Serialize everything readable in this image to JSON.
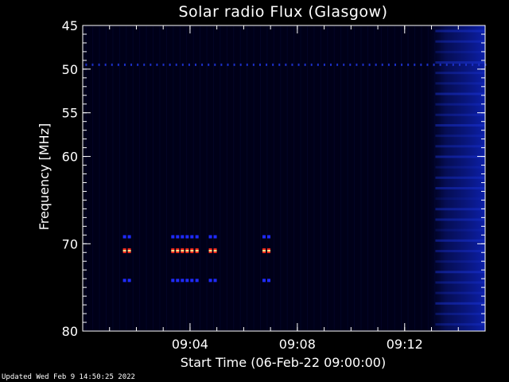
{
  "chart_data": {
    "type": "heatmap",
    "title": "Solar radio Flux (Glasgow)",
    "xlabel": "Start Time (06-Feb-22 09:00:00)",
    "ylabel": "Frequency [MHz]",
    "x_unit": "minutes after 09:00:00",
    "xlim": [
      0,
      15
    ],
    "ylim": [
      45,
      80
    ],
    "y_inverted": true,
    "x_ticks": [
      {
        "value": 4,
        "label": "09:04"
      },
      {
        "value": 8,
        "label": "09:08"
      },
      {
        "value": 12,
        "label": "09:12"
      }
    ],
    "y_ticks": [
      {
        "value": 45,
        "label": "45"
      },
      {
        "value": 50,
        "label": "50"
      },
      {
        "value": 55,
        "label": "55"
      },
      {
        "value": 60,
        "label": "60"
      },
      {
        "value": 70,
        "label": "70"
      },
      {
        "value": 80,
        "label": "80"
      }
    ],
    "colors": {
      "background": "#000000",
      "low": "#000018",
      "mid": "#0a1a9a",
      "high": "#ff2a1a",
      "peak": "#ffe08a"
    },
    "features": {
      "interference_line_mhz": 49.5,
      "bursts": [
        {
          "t_start": 1.5,
          "t_end": 1.8,
          "freqs_mhz": [
            69.2,
            70.8,
            74.2
          ],
          "center_mhz": 70.8
        },
        {
          "t_start": 3.3,
          "t_end": 4.0,
          "freqs_mhz": [
            69.2,
            70.8,
            74.2
          ],
          "center_mhz": 70.8
        },
        {
          "t_start": 4.2,
          "t_end": 4.3,
          "freqs_mhz": [
            69.2,
            70.8,
            74.2
          ],
          "center_mhz": 70.8
        },
        {
          "t_start": 4.7,
          "t_end": 5.0,
          "freqs_mhz": [
            69.2,
            70.8,
            74.2
          ],
          "center_mhz": 70.8
        },
        {
          "t_start": 6.7,
          "t_end": 7.0,
          "freqs_mhz": [
            69.2,
            70.8,
            74.2
          ],
          "center_mhz": 70.8
        }
      ],
      "noisy_region_t_start": 12.7
    }
  },
  "footer": {
    "updated": "Updated Wed Feb  9 14:50:25 2022"
  }
}
